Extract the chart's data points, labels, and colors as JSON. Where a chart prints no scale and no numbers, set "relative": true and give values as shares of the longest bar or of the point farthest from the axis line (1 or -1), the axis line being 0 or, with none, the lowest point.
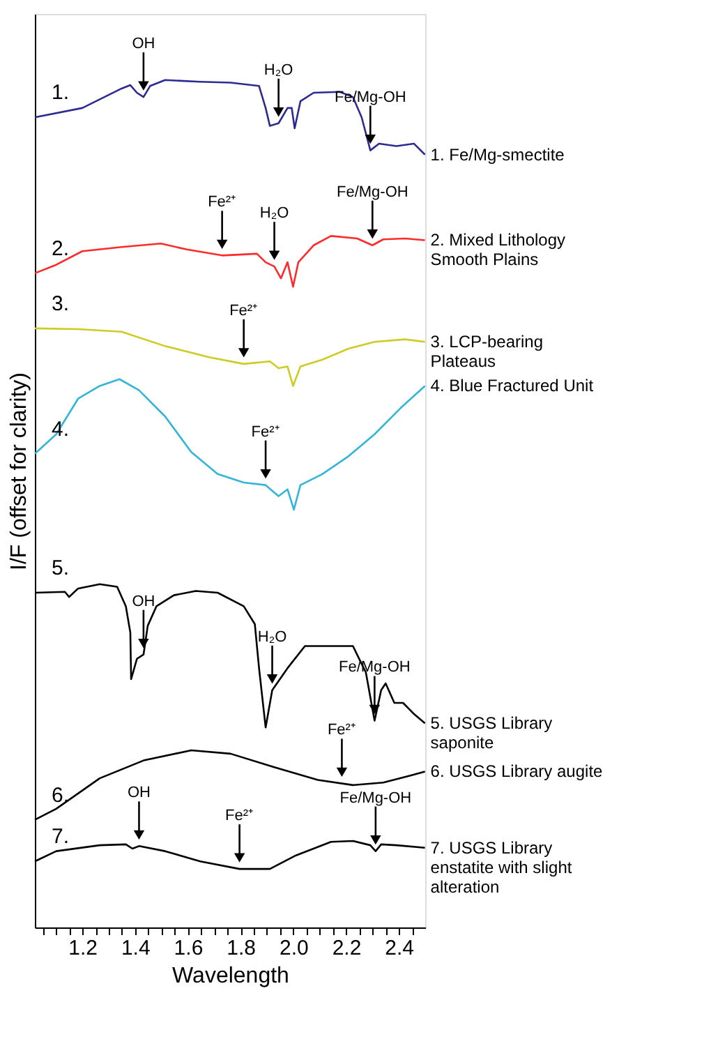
{
  "chart_data": {
    "type": "line",
    "relative": true,
    "xlabel": "Wavelength",
    "ylabel": "I/F (offset for clarity)",
    "xlim": [
      1.02,
      2.5
    ],
    "xticks": [
      {
        "value": 1.05,
        "label": null
      },
      {
        "value": 1.1,
        "label": null
      },
      {
        "value": 1.15,
        "label": null
      },
      1.2,
      {
        "value": 1.25,
        "label": null
      },
      {
        "value": 1.3,
        "label": null
      },
      {
        "value": 1.35,
        "label": null
      },
      1.4,
      {
        "value": 1.45,
        "label": null
      },
      {
        "value": 1.5,
        "label": null
      },
      {
        "value": 1.55,
        "label": null
      },
      1.6,
      {
        "value": 1.65,
        "label": null
      },
      {
        "value": 1.7,
        "label": null
      },
      {
        "value": 1.75,
        "label": null
      },
      1.8,
      {
        "value": 1.85,
        "label": null
      },
      {
        "value": 1.9,
        "label": null
      },
      {
        "value": 1.95,
        "label": null
      },
      {
        "value": 2.0,
        "label": "2.0"
      },
      {
        "value": 2.05,
        "label": null
      },
      {
        "value": 2.1,
        "label": null
      },
      {
        "value": 2.15,
        "label": null
      },
      2.2,
      {
        "value": 2.25,
        "label": null
      },
      {
        "value": 2.3,
        "label": null
      },
      {
        "value": 2.35,
        "label": null
      },
      2.4,
      {
        "value": 2.45,
        "label": null
      }
    ],
    "series": [
      {
        "name": "1. Fe/Mg-smectite",
        "color": "#2e2a92",
        "x": [
          1.02,
          1.2,
          1.349,
          1.382,
          1.407,
          1.432,
          1.457,
          1.514,
          1.647,
          1.762,
          1.87,
          1.895,
          1.911,
          1.944,
          1.978,
          1.994,
          2.005,
          2.027,
          2.077,
          2.176,
          2.226,
          2.259,
          2.292,
          2.325,
          2.391,
          2.457,
          2.499
        ],
        "values": [
          0.956,
          0.967,
          0.99,
          0.994,
          0.985,
          0.98,
          0.993,
          1.0,
          0.998,
          0.997,
          0.993,
          0.967,
          0.946,
          0.949,
          0.967,
          0.967,
          0.943,
          0.975,
          0.985,
          0.986,
          0.98,
          0.956,
          0.917,
          0.925,
          0.922,
          0.925,
          0.912
        ]
      },
      {
        "name": "2. Mixed Lithology Smooth Plains",
        "color": "#ff2a2a",
        "x": [
          1.02,
          1.101,
          1.2,
          1.349,
          1.498,
          1.597,
          1.73,
          1.862,
          1.895,
          1.928,
          1.953,
          1.978,
          1.999,
          2.019,
          2.077,
          2.143,
          2.242,
          2.3,
          2.341,
          2.424,
          2.499
        ],
        "values": [
          0.772,
          0.782,
          0.798,
          0.803,
          0.807,
          0.8,
          0.793,
          0.795,
          0.785,
          0.78,
          0.766,
          0.785,
          0.756,
          0.785,
          0.805,
          0.816,
          0.813,
          0.805,
          0.812,
          0.813,
          0.811
        ]
      },
      {
        "name": "3. LCP-bearing Plateaus",
        "color": "#cccc22",
        "x": [
          1.02,
          1.184,
          1.349,
          1.514,
          1.68,
          1.812,
          1.911,
          1.944,
          1.978,
          1.999,
          2.027,
          2.11,
          2.209,
          2.308,
          2.424,
          2.499
        ],
        "values": [
          0.707,
          0.706,
          0.703,
          0.686,
          0.673,
          0.665,
          0.668,
          0.66,
          0.662,
          0.639,
          0.662,
          0.67,
          0.683,
          0.691,
          0.694,
          0.691
        ]
      },
      {
        "name": "4. Blue Fractured Unit",
        "color": "#33b5d9",
        "x": [
          1.02,
          1.101,
          1.184,
          1.266,
          1.341,
          1.415,
          1.514,
          1.613,
          1.713,
          1.812,
          1.895,
          1.944,
          1.978,
          2.002,
          2.027,
          2.11,
          2.209,
          2.308,
          2.407,
          2.499
        ],
        "values": [
          0.559,
          0.582,
          0.624,
          0.639,
          0.647,
          0.634,
          0.603,
          0.561,
          0.535,
          0.525,
          0.522,
          0.509,
          0.517,
          0.493,
          0.522,
          0.535,
          0.556,
          0.582,
          0.613,
          0.639
        ]
      },
      {
        "name": "5. USGS Library saponite",
        "color": "#000000",
        "x": [
          1.02,
          1.134,
          1.15,
          1.184,
          1.266,
          1.332,
          1.365,
          1.382,
          1.385,
          1.407,
          1.432,
          1.448,
          1.481,
          1.547,
          1.63,
          1.713,
          1.812,
          1.854,
          1.87,
          1.895,
          1.92,
          1.978,
          2.044,
          2.226,
          2.275,
          2.308,
          2.333,
          2.35,
          2.383,
          2.416,
          2.457,
          2.499
        ],
        "values": [
          0.395,
          0.396,
          0.39,
          0.4,
          0.405,
          0.402,
          0.379,
          0.348,
          0.293,
          0.317,
          0.322,
          0.356,
          0.379,
          0.392,
          0.397,
          0.395,
          0.379,
          0.358,
          0.306,
          0.236,
          0.28,
          0.306,
          0.332,
          0.332,
          0.301,
          0.244,
          0.28,
          0.288,
          0.265,
          0.265,
          0.252,
          0.241
        ]
      },
      {
        "name": "6. USGS Library augite",
        "color": "#000000",
        "x": [
          1.02,
          1.101,
          1.266,
          1.432,
          1.613,
          1.762,
          1.928,
          2.093,
          2.226,
          2.341,
          2.441,
          2.499
        ],
        "values": [
          0.127,
          0.14,
          0.176,
          0.197,
          0.209,
          0.205,
          0.189,
          0.174,
          0.168,
          0.171,
          0.179,
          0.184
        ]
      },
      {
        "name": "7. USGS Library enstatite with slight alteration",
        "color": "#000000",
        "x": [
          1.02,
          1.101,
          1.266,
          1.365,
          1.39,
          1.415,
          1.514,
          1.647,
          1.796,
          1.911,
          2.01,
          2.143,
          2.226,
          2.292,
          2.312,
          2.333,
          2.391,
          2.499
        ],
        "values": [
          0.078,
          0.09,
          0.097,
          0.098,
          0.093,
          0.096,
          0.09,
          0.078,
          0.069,
          0.069,
          0.085,
          0.101,
          0.102,
          0.097,
          0.09,
          0.098,
          0.097,
          0.094
        ]
      }
    ],
    "annotations": [
      "1.",
      "2.",
      "3.",
      "4.",
      "5.",
      "6.",
      "7.",
      {
        "text": "OH",
        "x": 1.432,
        "y": 0.98
      },
      {
        "text": "H₂O",
        "x": 1.944,
        "y": 0.949
      },
      {
        "text": "Fe/Mg-OH",
        "x": 2.292,
        "y": 0.917
      },
      {
        "text": "Fe²⁺",
        "x": 1.73,
        "y": 0.793
      },
      {
        "text": "H₂O",
        "x": 1.928,
        "y": 0.78
      },
      {
        "text": "Fe/Mg-OH",
        "x": 2.3,
        "y": 0.805
      },
      {
        "text": "Fe²⁺",
        "x": 1.812,
        "y": 0.665
      },
      {
        "text": "Fe²⁺",
        "x": 1.895,
        "y": 0.522
      },
      {
        "text": "OH",
        "x": 1.432,
        "y": 0.322
      },
      {
        "text": "H₂O",
        "x": 1.92,
        "y": 0.28
      },
      {
        "text": "Fe/Mg-OH",
        "x": 2.308,
        "y": 0.244
      },
      {
        "text": "Fe²⁺",
        "x": 2.184,
        "y": 0.17
      },
      {
        "text": "OH",
        "x": 1.415,
        "y": 0.096
      },
      {
        "text": "Fe²⁺",
        "x": 1.796,
        "y": 0.069
      },
      {
        "text": "Fe/Mg-OH",
        "x": 2.312,
        "y": 0.09
      }
    ]
  }
}
